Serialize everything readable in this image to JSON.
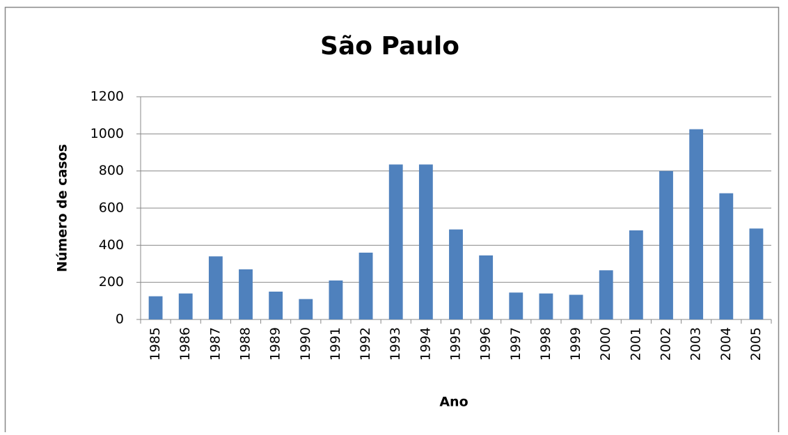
{
  "chart_data": {
    "type": "bar",
    "title": "São Paulo",
    "x_label": "Ano",
    "y_label": "Número de casos",
    "categories": [
      "1985",
      "1986",
      "1987",
      "1988",
      "1989",
      "1990",
      "1991",
      "1992",
      "1993",
      "1994",
      "1995",
      "1996",
      "1997",
      "1998",
      "1999",
      "2000",
      "2001",
      "2002",
      "2003",
      "2004",
      "2005"
    ],
    "values": [
      125,
      140,
      340,
      270,
      150,
      110,
      210,
      360,
      835,
      835,
      485,
      345,
      145,
      140,
      133,
      265,
      480,
      800,
      1025,
      680,
      490
    ],
    "color": "#4f81bd",
    "ylim": [
      0,
      1200
    ],
    "yticks": [
      0,
      200,
      400,
      600,
      800,
      1000,
      1200
    ],
    "grid": true
  }
}
